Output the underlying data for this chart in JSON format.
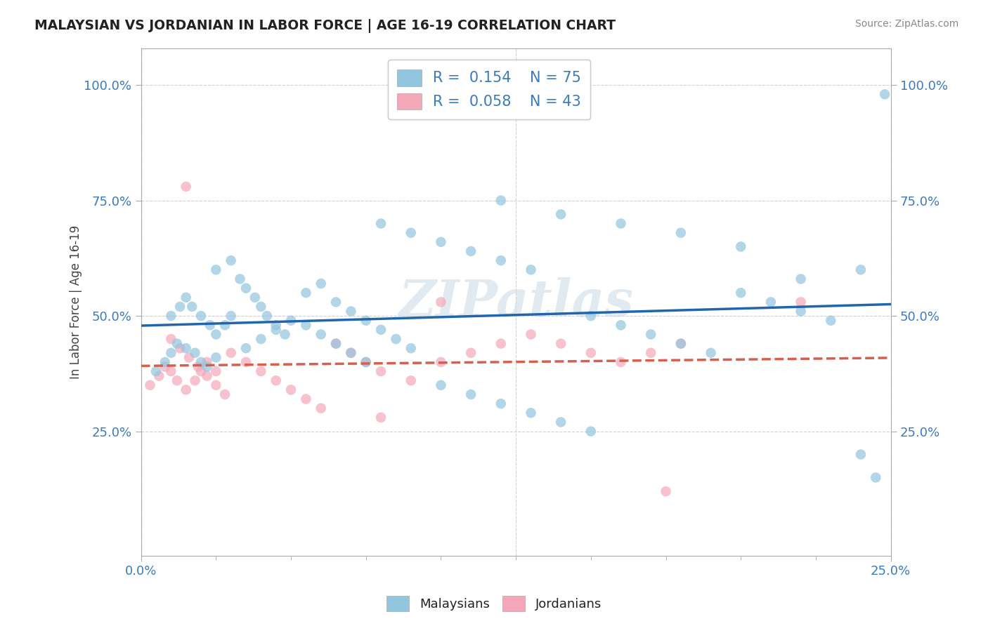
{
  "title": "MALAYSIAN VS JORDANIAN IN LABOR FORCE | AGE 16-19 CORRELATION CHART",
  "source": "Source: ZipAtlas.com",
  "ylabel": "In Labor Force | Age 16-19",
  "xlim": [
    0.0,
    0.25
  ],
  "ylim": [
    -0.02,
    1.08
  ],
  "yticks": [
    0.25,
    0.5,
    0.75,
    1.0
  ],
  "ytick_labels": [
    "25.0%",
    "50.0%",
    "75.0%",
    "100.0%"
  ],
  "xtick_left": "0.0%",
  "xtick_right": "25.0%",
  "blue_color": "#92c5de",
  "pink_color": "#f4a7b9",
  "blue_line_color": "#2166ac",
  "pink_line_color": "#d6604d",
  "legend_blue": "R =  0.154    N = 75",
  "legend_pink": "R =  0.058    N = 43",
  "label_malaysians": "Malaysians",
  "label_jordanians": "Jordanians",
  "watermark": "ZIPatlas",
  "blue_x": [
    0.005,
    0.008,
    0.01,
    0.012,
    0.015,
    0.018,
    0.02,
    0.022,
    0.025,
    0.01,
    0.013,
    0.015,
    0.017,
    0.02,
    0.023,
    0.025,
    0.028,
    0.03,
    0.025,
    0.03,
    0.033,
    0.035,
    0.038,
    0.04,
    0.042,
    0.045,
    0.048,
    0.035,
    0.04,
    0.045,
    0.05,
    0.055,
    0.06,
    0.065,
    0.07,
    0.075,
    0.055,
    0.06,
    0.065,
    0.07,
    0.075,
    0.08,
    0.085,
    0.09,
    0.08,
    0.09,
    0.1,
    0.11,
    0.12,
    0.13,
    0.1,
    0.11,
    0.12,
    0.13,
    0.14,
    0.15,
    0.15,
    0.16,
    0.17,
    0.18,
    0.19,
    0.2,
    0.21,
    0.22,
    0.23,
    0.24,
    0.12,
    0.14,
    0.16,
    0.18,
    0.2,
    0.22,
    0.24,
    0.245,
    0.248
  ],
  "blue_y": [
    0.38,
    0.4,
    0.42,
    0.44,
    0.43,
    0.42,
    0.4,
    0.39,
    0.41,
    0.5,
    0.52,
    0.54,
    0.52,
    0.5,
    0.48,
    0.46,
    0.48,
    0.5,
    0.6,
    0.62,
    0.58,
    0.56,
    0.54,
    0.52,
    0.5,
    0.48,
    0.46,
    0.43,
    0.45,
    0.47,
    0.49,
    0.48,
    0.46,
    0.44,
    0.42,
    0.4,
    0.55,
    0.57,
    0.53,
    0.51,
    0.49,
    0.47,
    0.45,
    0.43,
    0.7,
    0.68,
    0.66,
    0.64,
    0.62,
    0.6,
    0.35,
    0.33,
    0.31,
    0.29,
    0.27,
    0.25,
    0.5,
    0.48,
    0.46,
    0.44,
    0.42,
    0.55,
    0.53,
    0.51,
    0.49,
    0.2,
    0.75,
    0.72,
    0.7,
    0.68,
    0.65,
    0.58,
    0.6,
    0.15,
    0.98
  ],
  "pink_x": [
    0.003,
    0.006,
    0.008,
    0.01,
    0.012,
    0.015,
    0.018,
    0.02,
    0.022,
    0.025,
    0.01,
    0.013,
    0.016,
    0.019,
    0.022,
    0.025,
    0.028,
    0.03,
    0.035,
    0.04,
    0.045,
    0.05,
    0.055,
    0.06,
    0.065,
    0.07,
    0.075,
    0.08,
    0.09,
    0.1,
    0.11,
    0.12,
    0.13,
    0.14,
    0.15,
    0.16,
    0.17,
    0.18,
    0.015,
    0.08,
    0.1,
    0.175,
    0.22
  ],
  "pink_y": [
    0.35,
    0.37,
    0.39,
    0.38,
    0.36,
    0.34,
    0.36,
    0.38,
    0.4,
    0.38,
    0.45,
    0.43,
    0.41,
    0.39,
    0.37,
    0.35,
    0.33,
    0.42,
    0.4,
    0.38,
    0.36,
    0.34,
    0.32,
    0.3,
    0.44,
    0.42,
    0.4,
    0.38,
    0.36,
    0.4,
    0.42,
    0.44,
    0.46,
    0.44,
    0.42,
    0.4,
    0.42,
    0.44,
    0.78,
    0.28,
    0.53,
    0.12,
    0.53
  ],
  "background_color": "#ffffff",
  "grid_color": "#d0d0d0"
}
